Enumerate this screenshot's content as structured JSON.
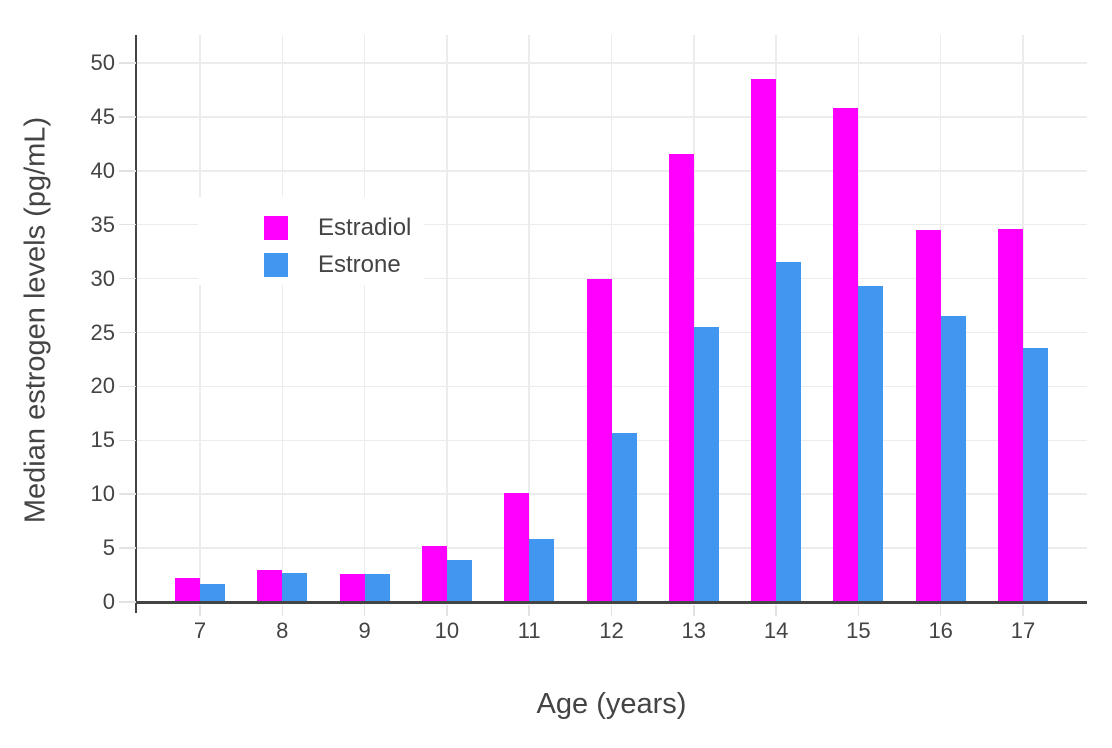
{
  "chart_data": {
    "type": "bar",
    "title": "",
    "xlabel": "Age (years)",
    "ylabel": "Median estrogen levels (pg/mL)",
    "categories": [
      7,
      8,
      9,
      10,
      11,
      12,
      13,
      14,
      15,
      16,
      17
    ],
    "series": [
      {
        "name": "Estradiol",
        "color": "#FF00FF",
        "values": [
          2.2,
          3.0,
          2.6,
          5.2,
          10.1,
          30.0,
          41.6,
          48.5,
          45.8,
          34.5,
          34.6
        ]
      },
      {
        "name": "Estrone",
        "color": "#4196F0",
        "values": [
          1.7,
          2.7,
          2.6,
          3.9,
          5.8,
          15.7,
          25.5,
          31.5,
          29.3,
          26.5,
          23.6
        ]
      }
    ],
    "ylim": [
      0,
      50
    ],
    "y_ticks": [
      0,
      5,
      10,
      15,
      20,
      25,
      30,
      35,
      40,
      45,
      50
    ],
    "grid": true,
    "legend_position": "inside-upper-left",
    "colors": {
      "grid": "#ECECEC",
      "axis": "#444444",
      "text": "#444444",
      "background": "#FFFFFF"
    }
  }
}
